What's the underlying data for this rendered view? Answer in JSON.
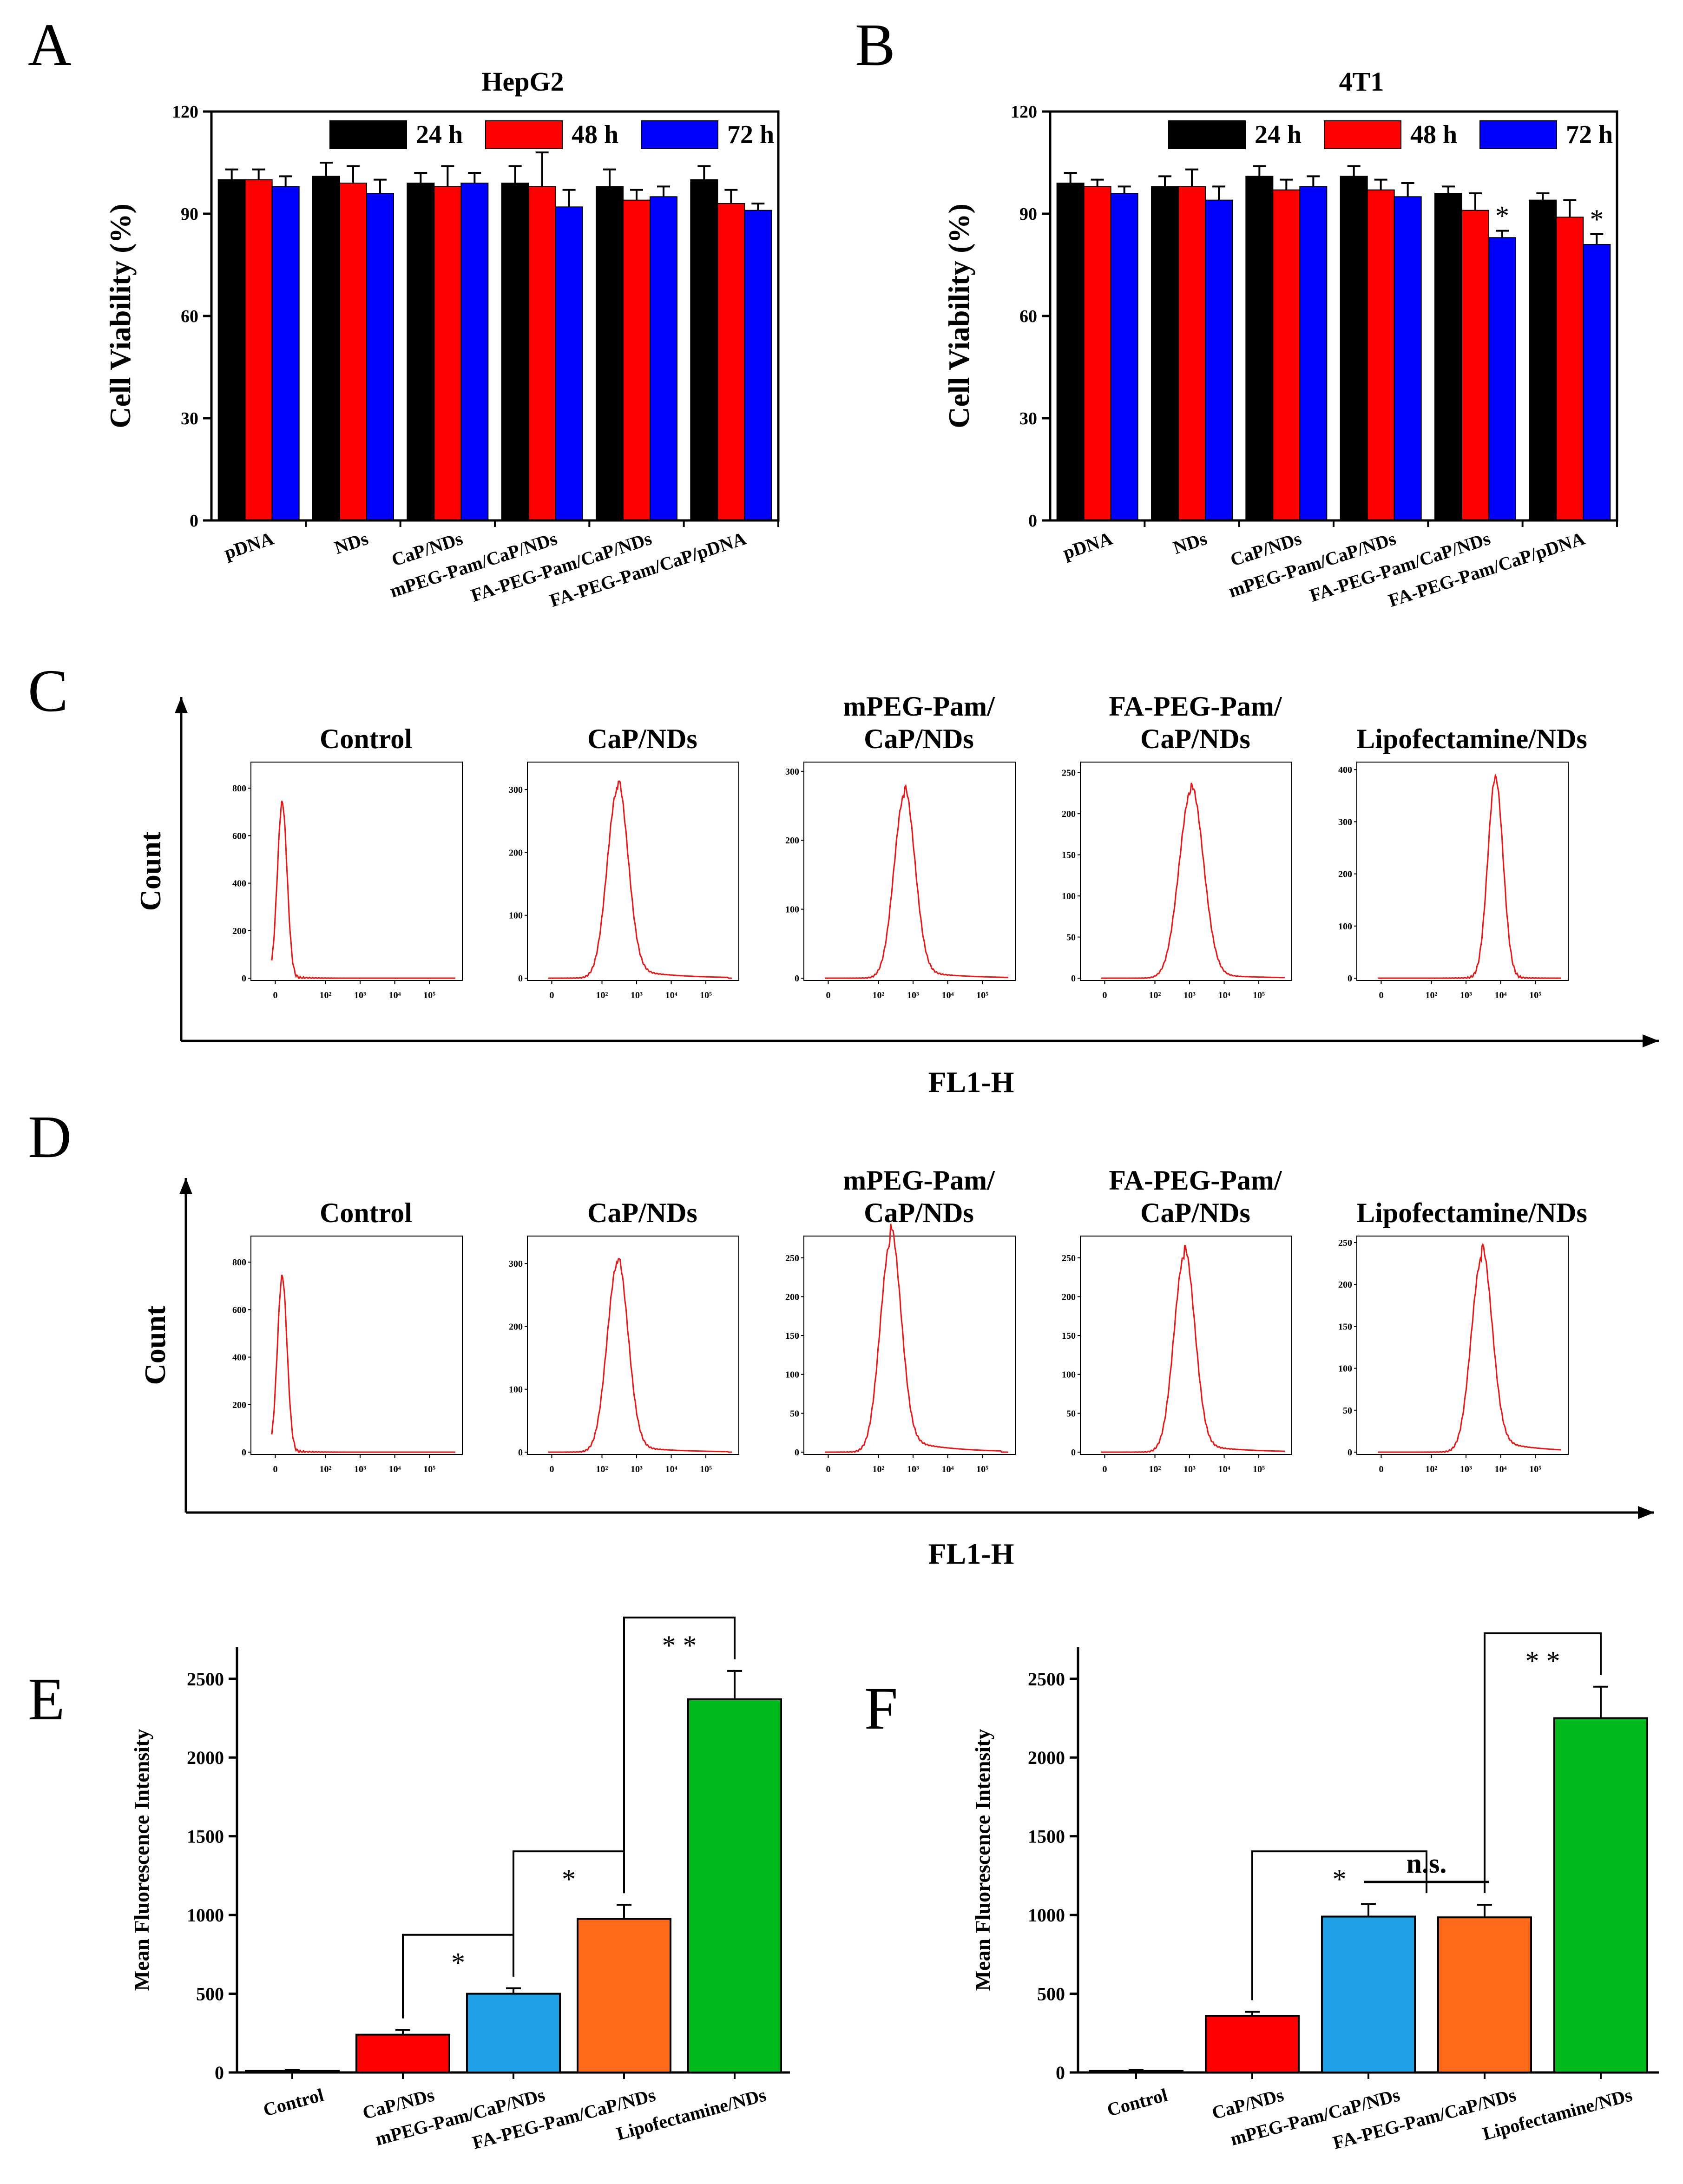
{
  "chart_data": [
    {
      "panel": "A",
      "type": "bar",
      "title": "HepG2",
      "ylabel": "Cell Viability (%)",
      "xlabel": "",
      "ylim": [
        0,
        120
      ],
      "yticks": [
        0,
        30,
        60,
        90,
        120
      ],
      "categories": [
        "pDNA",
        "NDs",
        "CaP/NDs",
        "mPEG-Pam/CaP/NDs",
        "FA-PEG-Pam/CaP/NDs",
        "FA-PEG-Pam/CaP/pDNA"
      ],
      "series": [
        {
          "name": "24 h",
          "color": "#000000",
          "values": [
            100,
            101,
            99,
            99,
            98,
            100
          ],
          "errors": [
            3,
            4,
            3,
            5,
            5,
            4
          ],
          "sig": [
            "",
            "",
            "",
            "",
            "",
            ""
          ]
        },
        {
          "name": "48 h",
          "color": "#ff0000",
          "values": [
            100,
            99,
            98,
            98,
            94,
            93
          ],
          "errors": [
            3,
            5,
            6,
            10,
            3,
            4
          ],
          "sig": [
            "",
            "",
            "",
            "",
            "",
            ""
          ]
        },
        {
          "name": "72 h",
          "color": "#0000ff",
          "values": [
            98,
            96,
            99,
            92,
            95,
            91
          ],
          "errors": [
            3,
            4,
            3,
            5,
            3,
            2
          ],
          "sig": [
            "",
            "",
            "",
            "",
            "",
            ""
          ]
        }
      ]
    },
    {
      "panel": "B",
      "type": "bar",
      "title": "4T1",
      "ylabel": "Cell Viability (%)",
      "xlabel": "",
      "ylim": [
        0,
        120
      ],
      "yticks": [
        0,
        30,
        60,
        90,
        120
      ],
      "categories": [
        "pDNA",
        "NDs",
        "CaP/NDs",
        "mPEG-Pam/CaP/NDs",
        "FA-PEG-Pam/CaP/NDs",
        "FA-PEG-Pam/CaP/pDNA"
      ],
      "series": [
        {
          "name": "24 h",
          "color": "#000000",
          "values": [
            99,
            98,
            101,
            101,
            96,
            94
          ],
          "errors": [
            3,
            3,
            3,
            3,
            2,
            2
          ],
          "sig": [
            "",
            "",
            "",
            "",
            "",
            ""
          ]
        },
        {
          "name": "48 h",
          "color": "#ff0000",
          "values": [
            98,
            98,
            97,
            97,
            91,
            89
          ],
          "errors": [
            2,
            5,
            3,
            3,
            5,
            5
          ],
          "sig": [
            "",
            "",
            "",
            "",
            "",
            ""
          ]
        },
        {
          "name": "72 h",
          "color": "#0000ff",
          "values": [
            96,
            94,
            98,
            95,
            83,
            81
          ],
          "errors": [
            2,
            4,
            3,
            4,
            2,
            3
          ],
          "sig": [
            "",
            "",
            "",
            "",
            "*",
            "*"
          ]
        }
      ]
    },
    {
      "panel": "C",
      "type": "line",
      "ylabel": "Count",
      "xlabel": "FL1-H",
      "xticks": [
        "0",
        "10²",
        "10³",
        "10⁴",
        "10⁵"
      ],
      "histograms": [
        {
          "title_lines": [
            "Control"
          ],
          "ymax": 900,
          "yticks": [
            0,
            200,
            400,
            600,
            800
          ],
          "peak_log": 0.3,
          "peak_count": 740,
          "width": 0.14,
          "tail": 0.0
        },
        {
          "title_lines": [
            "CaP/NDs"
          ],
          "ymax": 340,
          "yticks": [
            0,
            100,
            200,
            300
          ],
          "peak_log": 2.0,
          "peak_count": 300,
          "width": 0.3,
          "tail": 0.06
        },
        {
          "title_lines": [
            "mPEG-Pam/",
            "CaP/NDs"
          ],
          "ymax": 310,
          "yticks": [
            0,
            100,
            200,
            300
          ],
          "peak_log": 2.3,
          "peak_count": 265,
          "width": 0.3,
          "tail": 0.05
        },
        {
          "title_lines": [
            "FA-PEG-Pam/",
            "CaP/NDs"
          ],
          "ymax": 260,
          "yticks": [
            0,
            50,
            100,
            150,
            200,
            250
          ],
          "peak_log": 2.6,
          "peak_count": 228,
          "width": 0.35,
          "tail": 0.03
        },
        {
          "title_lines": [
            "Lipofectamine/NDs"
          ],
          "ymax": 410,
          "yticks": [
            0,
            100,
            200,
            300,
            400
          ],
          "peak_log": 3.4,
          "peak_count": 385,
          "width": 0.22,
          "tail": 0.0
        }
      ]
    },
    {
      "panel": "D",
      "type": "line",
      "ylabel": "Count",
      "xlabel": "FL1-H",
      "xticks": [
        "0",
        "10²",
        "10³",
        "10⁴",
        "10⁵"
      ],
      "histograms": [
        {
          "title_lines": [
            "Control"
          ],
          "ymax": 900,
          "yticks": [
            0,
            200,
            400,
            600,
            800
          ],
          "peak_log": 0.3,
          "peak_count": 740,
          "width": 0.14,
          "tail": 0.0
        },
        {
          "title_lines": [
            "CaP/NDs"
          ],
          "ymax": 340,
          "yticks": [
            0,
            100,
            200,
            300
          ],
          "peak_log": 2.0,
          "peak_count": 300,
          "width": 0.3,
          "tail": 0.04
        },
        {
          "title_lines": [
            "mPEG-Pam/",
            "CaP/NDs"
          ],
          "ymax": 275,
          "yticks": [
            0,
            50,
            100,
            150,
            200,
            250
          ],
          "peak_log": 1.9,
          "peak_count": 270,
          "width": 0.3,
          "tail": 0.08
        },
        {
          "title_lines": [
            "FA-PEG-Pam/",
            "CaP/NDs"
          ],
          "ymax": 275,
          "yticks": [
            0,
            50,
            100,
            150,
            200,
            250
          ],
          "peak_log": 2.4,
          "peak_count": 252,
          "width": 0.3,
          "tail": 0.05
        },
        {
          "title_lines": [
            "Lipofectamine/NDs"
          ],
          "ymax": 255,
          "yticks": [
            0,
            50,
            100,
            150,
            200,
            250
          ],
          "peak_log": 3.0,
          "peak_count": 230,
          "width": 0.3,
          "tail": 0.08
        }
      ]
    },
    {
      "panel": "E",
      "type": "bar",
      "title": "",
      "ylabel": "Mean Fluorescence Intensity",
      "xlabel": "",
      "ylim": [
        0,
        2700
      ],
      "yticks": [
        0,
        500,
        1000,
        1500,
        2000,
        2500
      ],
      "categories": [
        "Control",
        "CaP/NDs",
        "mPEG-Pam/CaP/NDs",
        "FA-PEG-Pam/CaP/NDs",
        "Lipofectamine/NDs"
      ],
      "values": [
        10,
        240,
        500,
        975,
        2370
      ],
      "errors": [
        5,
        30,
        35,
        90,
        180
      ],
      "colors": [
        "#222222",
        "#ff0000",
        "#1ea0e6",
        "#ff6a1a",
        "#00bb1e"
      ],
      "comparisons": [
        {
          "from": 1,
          "to": 2,
          "label": "*"
        },
        {
          "from": 2,
          "to": 3,
          "label": "*"
        },
        {
          "from": 3,
          "to": 4,
          "label": "* *"
        }
      ]
    },
    {
      "panel": "F",
      "type": "bar",
      "title": "",
      "ylabel": "Mean Fluorescence Intensity",
      "xlabel": "",
      "ylim": [
        0,
        2700
      ],
      "yticks": [
        0,
        500,
        1000,
        1500,
        2000,
        2500
      ],
      "categories": [
        "Control",
        "CaP/NDs",
        "mPEG-Pam/CaP/NDs",
        "FA-PEG-Pam/CaP/NDs",
        "Lipofectamine/NDs"
      ],
      "values": [
        10,
        360,
        990,
        985,
        2250
      ],
      "errors": [
        5,
        25,
        80,
        80,
        200
      ],
      "colors": [
        "#222222",
        "#ff0000",
        "#1ea0e6",
        "#ff6a1a",
        "#00bb1e"
      ],
      "comparisons": [
        {
          "from": 1,
          "to": 2.5,
          "label": "*"
        },
        {
          "from": 3,
          "to": 4,
          "label": "* *"
        }
      ],
      "ns_label": "n.s."
    }
  ]
}
